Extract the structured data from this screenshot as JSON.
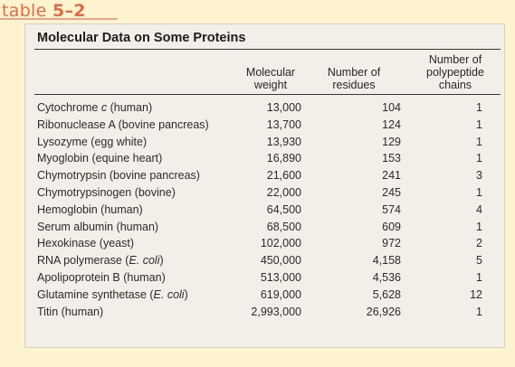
{
  "tag": {
    "prefix": "table",
    "number": "5–2"
  },
  "title": "Molecular Data on Some Proteins",
  "columns": {
    "molecular_weight": [
      "Molecular",
      "weight"
    ],
    "residues": [
      "Number of",
      "residues"
    ],
    "chains": [
      "Number of",
      "polypeptide",
      "chains"
    ]
  },
  "rows": [
    {
      "name": "Cytochrome ",
      "name_italic": "c",
      "name_tail": " (human)",
      "mw": "13,000",
      "residues": "104",
      "chains": "1"
    },
    {
      "name": "Ribonuclease A (bovine pancreas)",
      "name_italic": "",
      "name_tail": "",
      "mw": "13,700",
      "residues": "124",
      "chains": "1"
    },
    {
      "name": "Lysozyme (egg white)",
      "name_italic": "",
      "name_tail": "",
      "mw": "13,930",
      "residues": "129",
      "chains": "1"
    },
    {
      "name": "Myoglobin (equine heart)",
      "name_italic": "",
      "name_tail": "",
      "mw": "16,890",
      "residues": "153",
      "chains": "1"
    },
    {
      "name": "Chymotrypsin (bovine pancreas)",
      "name_italic": "",
      "name_tail": "",
      "mw": "21,600",
      "residues": "241",
      "chains": "3"
    },
    {
      "name": "Chymotrypsinogen (bovine)",
      "name_italic": "",
      "name_tail": "",
      "mw": "22,000",
      "residues": "245",
      "chains": "1"
    },
    {
      "name": "Hemoglobin (human)",
      "name_italic": "",
      "name_tail": "",
      "mw": "64,500",
      "residues": "574",
      "chains": "4"
    },
    {
      "name": "Serum albumin (human)",
      "name_italic": "",
      "name_tail": "",
      "mw": "68,500",
      "residues": "609",
      "chains": "1"
    },
    {
      "name": "Hexokinase (yeast)",
      "name_italic": "",
      "name_tail": "",
      "mw": "102,000",
      "residues": "972",
      "chains": "2"
    },
    {
      "name": "RNA polymerase (",
      "name_italic": "E. coli",
      "name_tail": ")",
      "mw": "450,000",
      "residues": "4,158",
      "chains": "5"
    },
    {
      "name": "Apolipoprotein B (human)",
      "name_italic": "",
      "name_tail": "",
      "mw": "513,000",
      "residues": "4,536",
      "chains": "1"
    },
    {
      "name": "Glutamine synthetase (",
      "name_italic": "E. coli",
      "name_tail": ")",
      "mw": "619,000",
      "residues": "5,628",
      "chains": "12"
    },
    {
      "name": "Titin (human)",
      "name_italic": "",
      "name_tail": "",
      "mw": "2,993,000",
      "residues": "26,926",
      "chains": "1"
    }
  ]
}
